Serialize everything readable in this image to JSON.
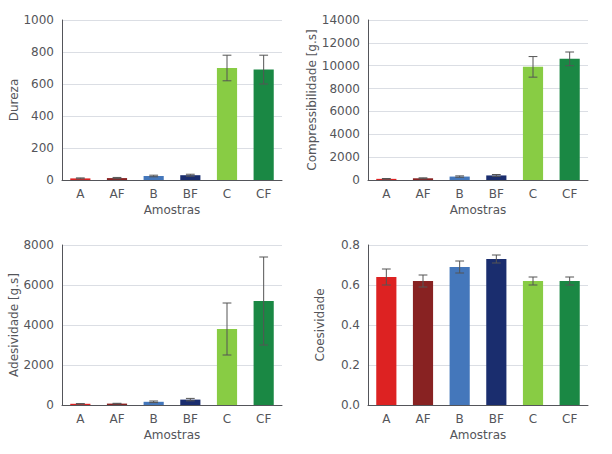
{
  "chart_data": [
    {
      "type": "bar",
      "categories": [
        "A",
        "AF",
        "B",
        "BF",
        "C",
        "CF"
      ],
      "colors": [
        "#dd2222",
        "#882222",
        "#4477bb",
        "#1a2d6e",
        "#88cc44",
        "#1a8844"
      ],
      "values": [
        10,
        12,
        25,
        30,
        700,
        690
      ],
      "errors": [
        3,
        4,
        5,
        6,
        80,
        90
      ],
      "xlabel": "Amostras",
      "ylabel": "Dureza",
      "ylim": [
        0,
        1000
      ],
      "yticks": [
        0,
        200,
        400,
        600,
        800,
        1000
      ],
      "grid": true
    },
    {
      "type": "bar",
      "categories": [
        "A",
        "AF",
        "B",
        "BF",
        "C",
        "CF"
      ],
      "colors": [
        "#dd2222",
        "#882222",
        "#4477bb",
        "#1a2d6e",
        "#88cc44",
        "#1a8844"
      ],
      "values": [
        100,
        150,
        300,
        400,
        9900,
        10600
      ],
      "errors": [
        30,
        40,
        60,
        80,
        900,
        600
      ],
      "xlabel": "Amostras",
      "ylabel": "Compressibilidade [g.s]",
      "ylim": [
        0,
        14000
      ],
      "yticks": [
        0,
        2000,
        4000,
        6000,
        8000,
        10000,
        12000,
        14000
      ],
      "grid": true
    },
    {
      "type": "bar",
      "categories": [
        "A",
        "AF",
        "B",
        "BF",
        "C",
        "CF"
      ],
      "colors": [
        "#dd2222",
        "#882222",
        "#4477bb",
        "#1a2d6e",
        "#88cc44",
        "#1a8844"
      ],
      "values": [
        60,
        70,
        160,
        270,
        3800,
        5200
      ],
      "errors": [
        10,
        15,
        40,
        60,
        1300,
        2200
      ],
      "xlabel": "Amostras",
      "ylabel": "Adesividade [g.s]",
      "ylim": [
        0,
        8000
      ],
      "yticks": [
        0,
        2000,
        4000,
        6000,
        8000
      ],
      "grid": true
    },
    {
      "type": "bar",
      "categories": [
        "A",
        "AF",
        "B",
        "BF",
        "C",
        "CF"
      ],
      "colors": [
        "#dd2222",
        "#882222",
        "#4477bb",
        "#1a2d6e",
        "#88cc44",
        "#1a8844"
      ],
      "values": [
        0.64,
        0.62,
        0.69,
        0.73,
        0.62,
        0.62
      ],
      "errors": [
        0.04,
        0.03,
        0.03,
        0.02,
        0.02,
        0.02
      ],
      "xlabel": "Amostras",
      "ylabel": "Coesividade",
      "ylim": [
        0,
        0.8
      ],
      "yticks": [
        {
          "value": 0,
          "label": "0.0"
        },
        0.2,
        0.4,
        0.6,
        0.8
      ],
      "grid": true
    }
  ]
}
